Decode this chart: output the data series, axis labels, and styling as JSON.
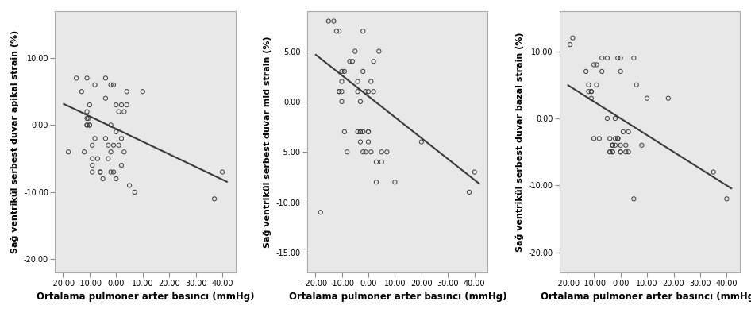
{
  "plots": [
    {
      "ylabel": "Sağ ventrikül serbest duvar apikal strain (%)",
      "xlabel": "Ortalama pulmoner arter bасıncı (mmHg)",
      "xlim": [
        -23,
        45
      ],
      "ylim": [
        -22,
        17
      ],
      "xticks": [
        -20,
        -10,
        0,
        10,
        20,
        30,
        40
      ],
      "yticks": [
        -20,
        -10,
        0,
        10
      ],
      "regression_x0": -20,
      "regression_x1": 42,
      "regression_y0": 3.2,
      "regression_y1": -8.5,
      "scatter_x": [
        -18,
        -15,
        -13,
        -12,
        -11,
        -11,
        -11,
        -11,
        -11,
        -10.5,
        -10,
        -10,
        -10,
        -9,
        -9,
        -9,
        -9,
        -8,
        -8,
        -7,
        -6,
        -6,
        -5,
        -4,
        -4,
        -4,
        -3,
        -3,
        -2,
        -2,
        -2,
        -2,
        -1,
        -1,
        -1,
        0,
        0,
        0,
        1,
        1,
        2,
        2,
        2,
        3,
        3,
        4,
        4,
        5,
        7,
        10,
        37,
        40
      ],
      "scatter_y": [
        -4,
        7,
        5,
        -4,
        0,
        0,
        1,
        2,
        7,
        1,
        0,
        0,
        3,
        -3,
        -5,
        -6,
        -7,
        -2,
        6,
        -5,
        -7,
        -7,
        -8,
        7,
        4,
        -2,
        -3,
        -5,
        6,
        -7,
        -4,
        0,
        -7,
        6,
        -3,
        -1,
        -8,
        3,
        2,
        -3,
        -6,
        -2,
        3,
        2,
        -4,
        5,
        3,
        -9,
        -10,
        5,
        -11,
        -7
      ]
    },
    {
      "ylabel": "Sağ ventrikül serbest duvar mid strain (%)",
      "xlabel": "Ortalama pulmoner arter bасıncı (mmHg)",
      "xlim": [
        -23,
        45
      ],
      "ylim": [
        -17,
        9
      ],
      "xticks": [
        -20,
        -10,
        0,
        10,
        20,
        30,
        40
      ],
      "yticks": [
        -15,
        -10,
        -5,
        0,
        5
      ],
      "regression_x0": -20,
      "regression_x1": 42,
      "regression_y0": 4.7,
      "regression_y1": -8.2,
      "scatter_x": [
        -18,
        -15,
        -13,
        -12,
        -11,
        -11,
        -11,
        -10,
        -10,
        -10,
        -10,
        -9,
        -9,
        -8,
        -7,
        -6,
        -5,
        -4,
        -4,
        -4,
        -3,
        -3,
        -3,
        -3,
        -2,
        -2,
        -2,
        -2,
        -1,
        -1,
        0,
        0,
        0,
        0,
        1,
        1,
        2,
        2,
        3,
        3,
        4,
        5,
        5,
        7,
        10,
        20,
        38,
        40
      ],
      "scatter_y": [
        -11,
        8,
        8,
        7,
        7,
        1,
        1,
        3,
        2,
        1,
        0,
        3,
        -3,
        -5,
        4,
        4,
        5,
        2,
        1,
        -3,
        -3,
        -3,
        -4,
        0,
        7,
        -3,
        3,
        -5,
        -5,
        1,
        1,
        -3,
        -4,
        -3,
        -5,
        2,
        1,
        4,
        -8,
        -6,
        5,
        -5,
        -6,
        -5,
        -8,
        -4,
        -9,
        -7
      ]
    },
    {
      "ylabel": "Sağ ventrikül serbest duvar bazal strain (%)",
      "xlabel": "Ortalama pulmoner arter bасıncı (mmHg)",
      "xlim": [
        -23,
        45
      ],
      "ylim": [
        -23,
        16
      ],
      "xticks": [
        -20,
        -10,
        0,
        10,
        20,
        30,
        40
      ],
      "yticks": [
        -20,
        -10,
        0,
        10
      ],
      "regression_x0": -20,
      "regression_x1": 42,
      "regression_y0": 5.0,
      "regression_y1": -10.5,
      "scatter_x": [
        -19,
        -18,
        -13,
        -12,
        -12,
        -11,
        -11,
        -11,
        -10,
        -10,
        -9,
        -9,
        -8,
        -7,
        -7,
        -5,
        -5,
        -4,
        -4,
        -4,
        -3,
        -3,
        -3,
        -3,
        -3,
        -2,
        -2,
        -2,
        -1,
        -1,
        -1,
        -1,
        0,
        0,
        0,
        0,
        0,
        1,
        2,
        2,
        3,
        3,
        5,
        5,
        6,
        8,
        10,
        18,
        35,
        40
      ],
      "scatter_y": [
        11,
        12,
        7,
        5,
        4,
        4,
        4,
        3,
        -3,
        8,
        5,
        8,
        -3,
        7,
        9,
        9,
        0,
        -3,
        -5,
        -5,
        -4,
        -4,
        -5,
        -5,
        -4,
        -3,
        -4,
        0,
        -3,
        -3,
        -3,
        9,
        9,
        7,
        -4,
        -5,
        -5,
        -2,
        -5,
        -4,
        -5,
        -2,
        9,
        -12,
        5,
        -4,
        3,
        3,
        -8,
        -12
      ]
    }
  ],
  "bg_color": "#e8e8e8",
  "scatter_facecolor": "none",
  "scatter_edgecolor": "#3a3a3a",
  "scatter_size": 14,
  "scatter_linewidth": 0.7,
  "regression_color": "#3a3a3a",
  "regression_linewidth": 1.5,
  "tick_fontsize": 7,
  "xlabel_fontsize": 8.5,
  "ylabel_fontsize": 8,
  "label_fontweight": "bold",
  "figure_bg": "#ffffff"
}
